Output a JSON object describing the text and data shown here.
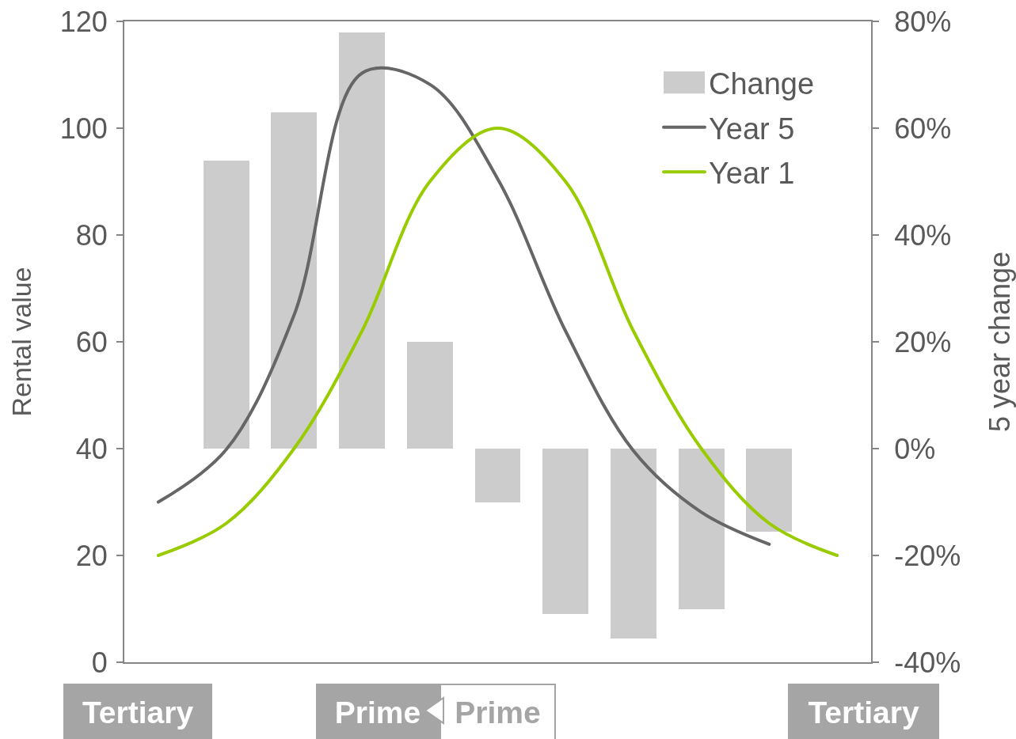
{
  "chart_data": {
    "type": "bar",
    "categories": [
      null,
      null,
      null,
      null,
      null,
      null,
      null,
      null,
      null,
      null,
      null
    ],
    "ylabel": "Rental value",
    "y2label": "5 year change",
    "ylim": [
      0,
      120
    ],
    "yticks": [
      0,
      20,
      40,
      60,
      80,
      100,
      120
    ],
    "y2lim": [
      -40,
      80
    ],
    "y2ticks": [
      {
        "value": -40,
        "label": "-40%"
      },
      {
        "value": -20,
        "label": "-20%"
      },
      {
        "value": 0,
        "label": "0%"
      },
      {
        "value": 20,
        "label": "20%"
      },
      {
        "value": 40,
        "label": "40%"
      },
      {
        "value": 60,
        "label": "60%"
      },
      {
        "value": 80,
        "label": "80%"
      }
    ],
    "legend": "top right",
    "annotations": [
      "Tertiary",
      "Prime",
      "Prime",
      "Tertiary"
    ],
    "series": [
      {
        "name": "Change",
        "axis": "y2",
        "color": "#cccccc",
        "values": [
          null,
          54,
          63,
          78,
          20,
          -10,
          -31,
          -35.5,
          -30,
          -15.5,
          null
        ]
      },
      {
        "name": "Year 5",
        "type": "line",
        "color": "#666666",
        "values": [
          30,
          39.8,
          65,
          110.3,
          108.2,
          90.5,
          62,
          39.6,
          28.1,
          22.1,
          null
        ]
      },
      {
        "name": "Year 1",
        "type": "line",
        "color": "#99cc00",
        "values": [
          20,
          26,
          40,
          62,
          90,
          100,
          90,
          62,
          40,
          26,
          20
        ]
      }
    ]
  }
}
